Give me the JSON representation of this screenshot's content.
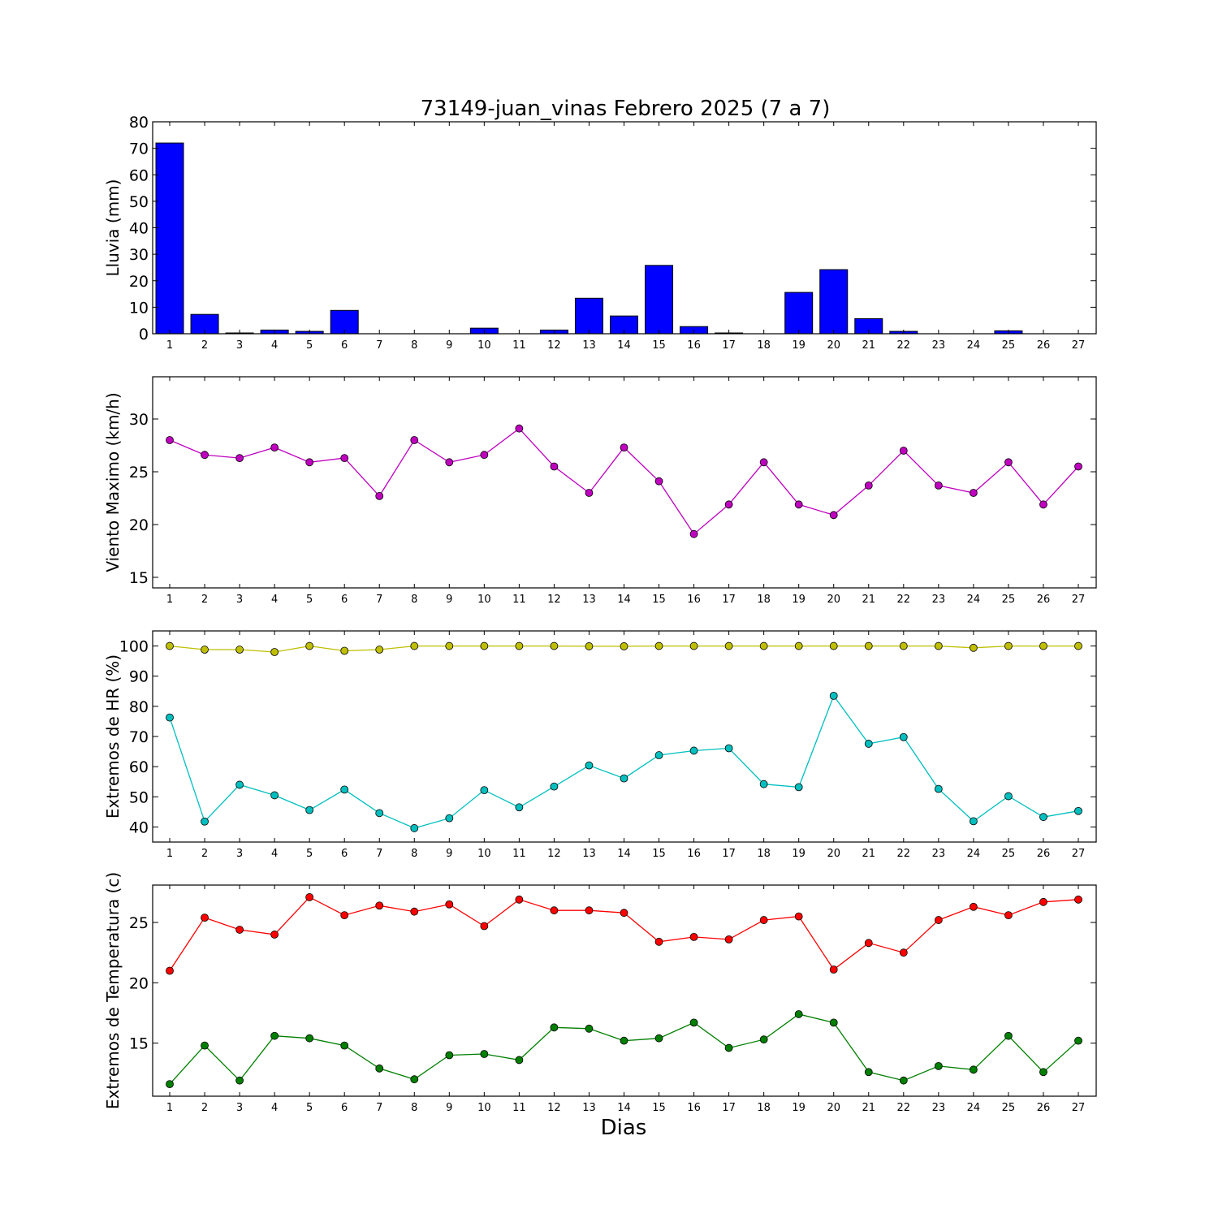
{
  "title": "73149-juan_vinas Febrero 2025  (7 a 7)",
  "xlabel": "Dias",
  "chart_data": [
    {
      "type": "bar",
      "ylabel": "Lluvia (mm)",
      "categories": [
        "1",
        "2",
        "3",
        "4",
        "5",
        "6",
        "7",
        "8",
        "9",
        "10",
        "11",
        "12",
        "13",
        "14",
        "15",
        "16",
        "17",
        "18",
        "19",
        "20",
        "21",
        "22",
        "23",
        "24",
        "25",
        "26",
        "27"
      ],
      "ylim": [
        0,
        80
      ],
      "yticks": [
        0,
        10,
        20,
        30,
        40,
        50,
        60,
        70,
        80
      ],
      "series": [
        {
          "color": "#0000ff",
          "values": [
            72.0,
            7.3,
            0.3,
            1.4,
            0.9,
            8.8,
            0.0,
            0.0,
            0.0,
            2.1,
            0.0,
            1.4,
            13.4,
            6.7,
            25.8,
            2.7,
            0.3,
            0.0,
            15.6,
            24.2,
            5.7,
            0.9,
            0.0,
            0.0,
            1.1,
            0.0,
            0.0
          ]
        }
      ]
    },
    {
      "type": "line",
      "ylabel": "Viento Maximo (km/h)",
      "categories": [
        "1",
        "2",
        "3",
        "4",
        "5",
        "6",
        "7",
        "8",
        "9",
        "10",
        "11",
        "12",
        "13",
        "14",
        "15",
        "16",
        "17",
        "18",
        "19",
        "20",
        "21",
        "22",
        "23",
        "24",
        "25",
        "26",
        "27"
      ],
      "ylim": [
        14,
        34
      ],
      "yticks": [
        15,
        20,
        25,
        30
      ],
      "series": [
        {
          "color": "#bf00bf",
          "values": [
            28.0,
            26.6,
            26.3,
            27.3,
            25.9,
            26.3,
            22.7,
            28.0,
            25.9,
            26.6,
            29.1,
            25.5,
            23.0,
            27.3,
            24.1,
            19.1,
            21.9,
            25.9,
            21.9,
            20.9,
            23.7,
            27.0,
            23.7,
            23.0,
            25.9,
            21.9,
            25.5
          ]
        }
      ]
    },
    {
      "type": "line",
      "ylabel": "Extremos de HR (%)",
      "categories": [
        "1",
        "2",
        "3",
        "4",
        "5",
        "6",
        "7",
        "8",
        "9",
        "10",
        "11",
        "12",
        "13",
        "14",
        "15",
        "16",
        "17",
        "18",
        "19",
        "20",
        "21",
        "22",
        "23",
        "24",
        "25",
        "26",
        "27"
      ],
      "ylim": [
        35,
        105
      ],
      "yticks": [
        40,
        50,
        60,
        70,
        80,
        90,
        100
      ],
      "series": [
        {
          "color": "#bfbf00",
          "values": [
            100.0,
            98.8,
            98.8,
            98.0,
            100.0,
            98.4,
            98.8,
            100.0,
            100.0,
            100.0,
            100.0,
            100.0,
            99.9,
            99.9,
            100.0,
            100.0,
            100.0,
            100.0,
            100.0,
            100.0,
            100.0,
            100.0,
            100.0,
            99.4,
            100.0,
            100.0,
            100.0
          ]
        },
        {
          "color": "#00bfbf",
          "values": [
            76.3,
            41.8,
            54.0,
            50.5,
            45.6,
            52.4,
            44.6,
            39.6,
            42.9,
            52.2,
            46.5,
            53.4,
            60.4,
            56.1,
            63.8,
            65.3,
            66.1,
            54.2,
            53.2,
            83.5,
            67.6,
            69.8,
            52.6,
            41.9,
            50.2,
            43.3,
            45.3
          ]
        }
      ]
    },
    {
      "type": "line",
      "ylabel": "Extremos de Temperatura (c)",
      "categories": [
        "1",
        "2",
        "3",
        "4",
        "5",
        "6",
        "7",
        "8",
        "9",
        "10",
        "11",
        "12",
        "13",
        "14",
        "15",
        "16",
        "17",
        "18",
        "19",
        "20",
        "21",
        "22",
        "23",
        "24",
        "25",
        "26",
        "27"
      ],
      "ylim": [
        10.6,
        28.1
      ],
      "yticks": [
        15,
        20,
        25
      ],
      "series": [
        {
          "color": "#ff0000",
          "values": [
            21.0,
            25.4,
            24.4,
            24.0,
            27.1,
            25.6,
            26.4,
            25.9,
            26.5,
            24.7,
            26.9,
            26.0,
            26.0,
            25.8,
            23.4,
            23.8,
            23.6,
            25.2,
            25.5,
            21.1,
            23.3,
            22.5,
            25.2,
            26.3,
            25.6,
            26.7,
            26.9
          ]
        },
        {
          "color": "#007f00",
          "values": [
            11.6,
            14.8,
            11.9,
            15.6,
            15.4,
            14.8,
            12.9,
            12.0,
            14.0,
            14.1,
            13.6,
            16.3,
            16.2,
            15.2,
            15.4,
            16.7,
            14.6,
            15.3,
            17.4,
            16.7,
            12.6,
            11.9,
            13.1,
            12.8,
            15.6,
            12.6,
            15.2
          ]
        }
      ]
    }
  ]
}
